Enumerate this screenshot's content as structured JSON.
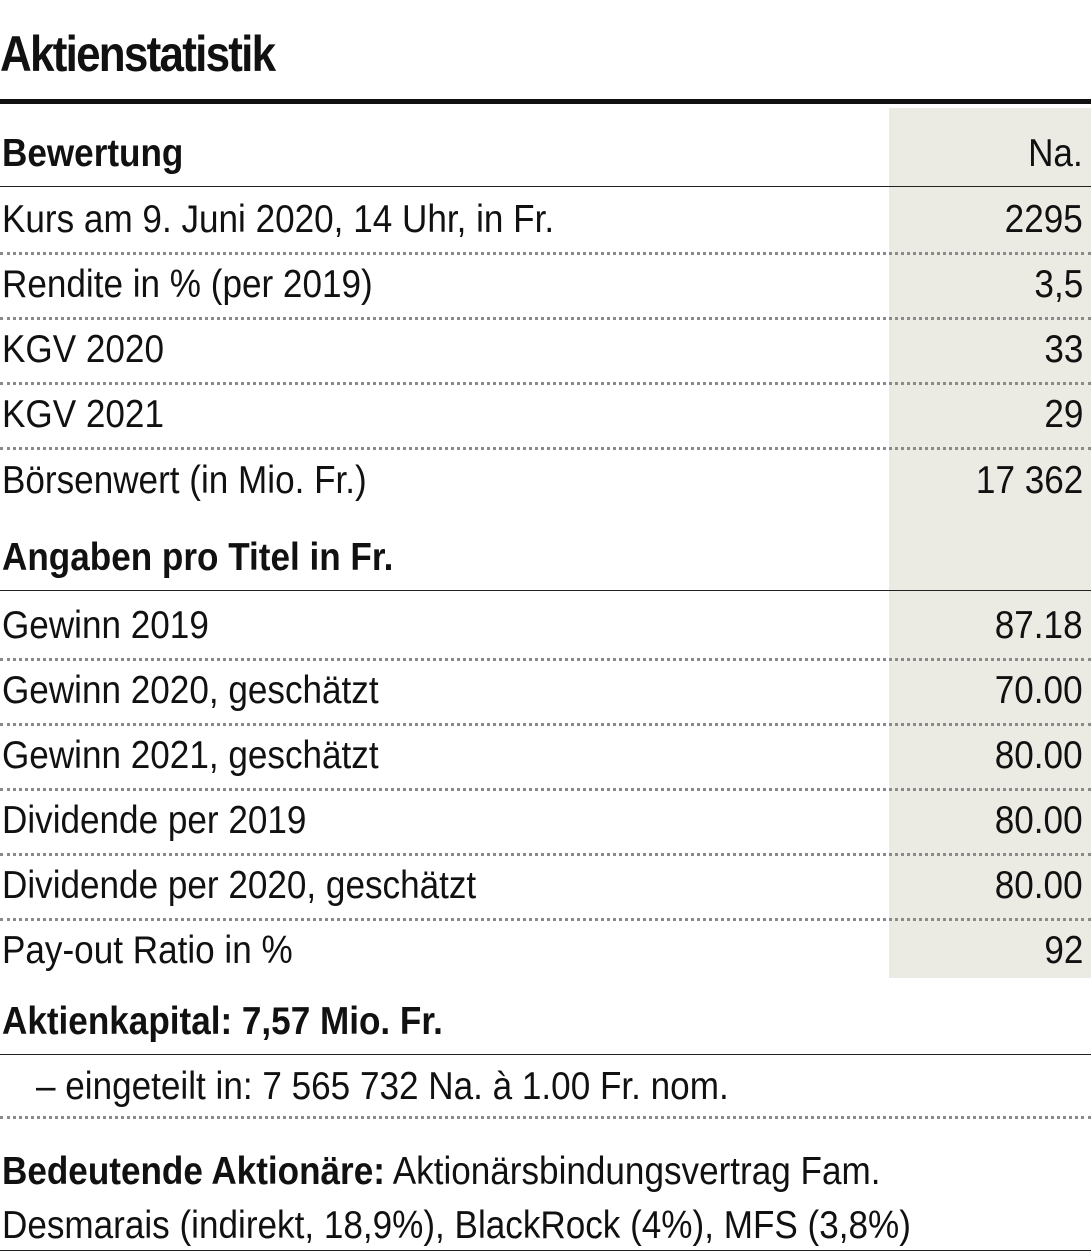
{
  "title": "Aktienstatistik",
  "section1": {
    "heading": "Bewertung",
    "column_label": "Na.",
    "rows": [
      {
        "label": "Kurs am 9. Juni 2020, 14 Uhr, in Fr.",
        "value": "2295"
      },
      {
        "label": "Rendite in % (per 2019)",
        "value": "3,5"
      },
      {
        "label": "KGV 2020",
        "value": "33"
      },
      {
        "label": "KGV 2021",
        "value": "29"
      },
      {
        "label": "Börsenwert (in Mio. Fr.)",
        "value": "17 362"
      }
    ]
  },
  "section2": {
    "heading": "Angaben pro Titel in Fr.",
    "rows": [
      {
        "label": "Gewinn 2019",
        "value": "87.18"
      },
      {
        "label": "Gewinn 2020, geschätzt",
        "value": "70.00"
      },
      {
        "label": "Gewinn 2021, geschätzt",
        "value": "80.00"
      },
      {
        "label": "Dividende per 2019",
        "value": "80.00"
      },
      {
        "label": "Dividende per 2020, geschätzt",
        "value": "80.00"
      },
      {
        "label": "Pay-out Ratio in %",
        "value": "92"
      }
    ]
  },
  "capital": {
    "text": "Aktienkapital: 7,57 Mio. Fr.",
    "detail": "– eingeteilt in: 7 565 732 Na. à 1.00 Fr. nom."
  },
  "shareholders": {
    "label": "Bedeutende Aktionäre:",
    "line1_rest": " Aktionärsbindungsvertrag Fam.",
    "line2": "Desmarais (indirekt, 18,9%), BlackRock (4%), MFS (3,8%)"
  }
}
